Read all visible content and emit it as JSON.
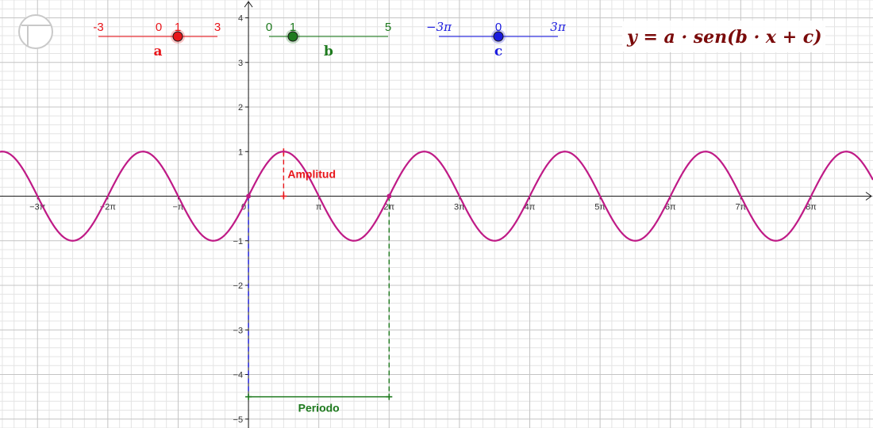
{
  "icons": {
    "graphics_view": "circle-quadrant-icon"
  },
  "formula": "y = a · sen(b · x + c)",
  "sliders": [
    {
      "id": "a",
      "name": "a",
      "min_label": "-3",
      "max_label": "3",
      "value_label": "1",
      "min": -3,
      "max": 3,
      "value": 1,
      "color": "#e8161b",
      "serif_labels": false
    },
    {
      "id": "b",
      "name": "b",
      "min_label": "0",
      "max_label": "5",
      "value_label": "1",
      "min": 0,
      "max": 5,
      "value": 1,
      "color": "#1e7a1e",
      "serif_labels": false
    },
    {
      "id": "c",
      "name": "c",
      "min_label": "−3π",
      "max_label": "3π",
      "value_label": "0",
      "min": -9.42478,
      "max": 9.42478,
      "value": 0,
      "color": "#1a1adf",
      "serif_labels": true
    }
  ],
  "annotations": {
    "amplitude": "Amplitud",
    "period": "Periodo",
    "amplitude_color": "#e8161b",
    "period_color": "#1e7a1e",
    "curve_color": "#bf1a86"
  },
  "chart_data": {
    "type": "line",
    "function": "y = a·sin(b·x + c)",
    "params": {
      "a": 1,
      "b": 1,
      "c": 0
    },
    "xlim": [
      -11.1,
      27.9
    ],
    "ylim": [
      -5.2,
      4.4
    ],
    "x_tick_labels": [
      "−3π",
      "−2π",
      "−π",
      "0",
      "π",
      "2π",
      "3π",
      "4π",
      "5π",
      "6π",
      "7π",
      "8π"
    ],
    "x_tick_values": [
      -9.42478,
      -6.28319,
      -3.14159,
      0,
      3.14159,
      6.28319,
      9.42478,
      12.56637,
      15.70796,
      18.84956,
      21.99115,
      25.13274
    ],
    "y_tick_labels": [
      "−5",
      "−4",
      "−3",
      "−2",
      "−1",
      "1",
      "2",
      "3",
      "4"
    ],
    "y_tick_values": [
      -5,
      -4,
      -3,
      -2,
      -1,
      1,
      2,
      3,
      4
    ],
    "amplitude_marker": {
      "x": 1.5708,
      "y_from": 0,
      "y_to": 1
    },
    "period_marker": {
      "x_from": 0,
      "x_to": 6.28319,
      "y": -4.5
    },
    "grid": true
  }
}
